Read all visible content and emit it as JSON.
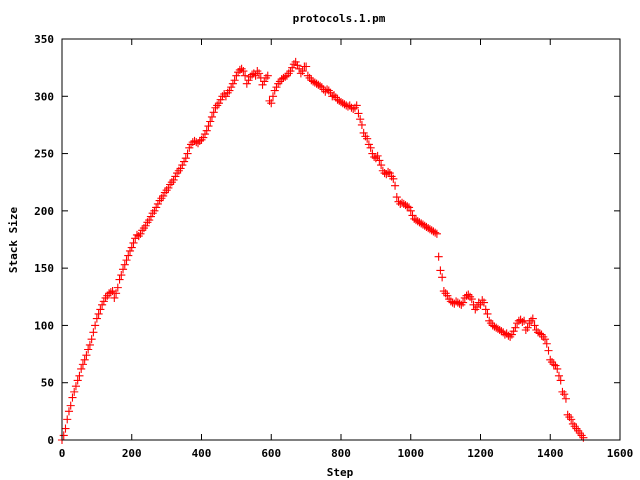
{
  "chart_data": {
    "type": "scatter",
    "title": "protocols.1.pm",
    "xlabel": "Step",
    "ylabel": "Stack Size",
    "xlim": [
      0,
      1600
    ],
    "ylim": [
      0,
      350
    ],
    "xticks": [
      0,
      200,
      400,
      600,
      800,
      1000,
      1200,
      1400,
      1600
    ],
    "yticks": [
      0,
      50,
      100,
      150,
      200,
      250,
      300,
      350
    ],
    "grid": false,
    "legend": "none",
    "marker": "plus",
    "color": "#ff0000",
    "series": [
      {
        "points": [
          [
            0,
            0
          ],
          [
            5,
            4
          ],
          [
            10,
            10
          ],
          [
            15,
            18
          ],
          [
            20,
            25
          ],
          [
            25,
            30
          ],
          [
            30,
            37
          ],
          [
            35,
            42
          ],
          [
            40,
            47
          ],
          [
            45,
            52
          ],
          [
            50,
            56
          ],
          [
            55,
            62
          ],
          [
            60,
            66
          ],
          [
            65,
            70
          ],
          [
            70,
            74
          ],
          [
            75,
            79
          ],
          [
            80,
            83
          ],
          [
            85,
            88
          ],
          [
            90,
            94
          ],
          [
            95,
            100
          ],
          [
            100,
            106
          ],
          [
            105,
            110
          ],
          [
            110,
            114
          ],
          [
            115,
            118
          ],
          [
            120,
            121
          ],
          [
            125,
            124
          ],
          [
            130,
            126
          ],
          [
            135,
            128
          ],
          [
            140,
            129
          ],
          [
            145,
            130
          ],
          [
            150,
            124
          ],
          [
            155,
            128
          ],
          [
            160,
            133
          ],
          [
            165,
            140
          ],
          [
            170,
            144
          ],
          [
            175,
            149
          ],
          [
            180,
            153
          ],
          [
            185,
            157
          ],
          [
            190,
            161
          ],
          [
            195,
            165
          ],
          [
            200,
            168
          ],
          [
            205,
            172
          ],
          [
            210,
            176
          ],
          [
            215,
            179
          ],
          [
            220,
            178
          ],
          [
            225,
            180
          ],
          [
            230,
            183
          ],
          [
            235,
            185
          ],
          [
            240,
            187
          ],
          [
            245,
            190
          ],
          [
            250,
            192
          ],
          [
            255,
            195
          ],
          [
            260,
            198
          ],
          [
            265,
            200
          ],
          [
            270,
            203
          ],
          [
            275,
            206
          ],
          [
            280,
            209
          ],
          [
            285,
            211
          ],
          [
            290,
            213
          ],
          [
            295,
            216
          ],
          [
            300,
            218
          ],
          [
            305,
            220
          ],
          [
            310,
            223
          ],
          [
            315,
            225
          ],
          [
            320,
            227
          ],
          [
            325,
            230
          ],
          [
            330,
            233
          ],
          [
            335,
            235
          ],
          [
            340,
            237
          ],
          [
            345,
            240
          ],
          [
            350,
            243
          ],
          [
            355,
            246
          ],
          [
            360,
            250
          ],
          [
            365,
            255
          ],
          [
            370,
            258
          ],
          [
            375,
            260
          ],
          [
            380,
            261
          ],
          [
            385,
            260
          ],
          [
            390,
            259
          ],
          [
            395,
            261
          ],
          [
            400,
            262
          ],
          [
            405,
            264
          ],
          [
            410,
            267
          ],
          [
            415,
            270
          ],
          [
            420,
            274
          ],
          [
            425,
            278
          ],
          [
            430,
            282
          ],
          [
            435,
            286
          ],
          [
            440,
            290
          ],
          [
            445,
            292
          ],
          [
            450,
            294
          ],
          [
            455,
            297
          ],
          [
            460,
            300
          ],
          [
            465,
            302
          ],
          [
            470,
            300
          ],
          [
            475,
            303
          ],
          [
            480,
            305
          ],
          [
            485,
            308
          ],
          [
            490,
            311
          ],
          [
            495,
            314
          ],
          [
            500,
            318
          ],
          [
            505,
            321
          ],
          [
            510,
            323
          ],
          [
            515,
            324
          ],
          [
            520,
            322
          ],
          [
            525,
            318
          ],
          [
            530,
            311
          ],
          [
            535,
            314
          ],
          [
            540,
            317
          ],
          [
            545,
            319
          ],
          [
            550,
            320
          ],
          [
            555,
            318
          ],
          [
            560,
            322
          ],
          [
            565,
            320
          ],
          [
            570,
            316
          ],
          [
            575,
            310
          ],
          [
            580,
            313
          ],
          [
            585,
            316
          ],
          [
            590,
            318
          ],
          [
            595,
            296
          ],
          [
            600,
            294
          ],
          [
            605,
            300
          ],
          [
            610,
            305
          ],
          [
            615,
            308
          ],
          [
            620,
            311
          ],
          [
            625,
            313
          ],
          [
            630,
            315
          ],
          [
            635,
            316
          ],
          [
            640,
            317
          ],
          [
            645,
            318
          ],
          [
            650,
            320
          ],
          [
            655,
            322
          ],
          [
            660,
            325
          ],
          [
            665,
            328
          ],
          [
            670,
            330
          ],
          [
            675,
            327
          ],
          [
            680,
            324
          ],
          [
            685,
            320
          ],
          [
            690,
            322
          ],
          [
            695,
            326
          ],
          [
            700,
            326
          ],
          [
            705,
            318
          ],
          [
            710,
            316
          ],
          [
            715,
            314
          ],
          [
            720,
            313
          ],
          [
            725,
            312
          ],
          [
            730,
            311
          ],
          [
            735,
            310
          ],
          [
            740,
            309
          ],
          [
            745,
            308
          ],
          [
            750,
            306
          ],
          [
            755,
            304
          ],
          [
            760,
            306
          ],
          [
            765,
            305
          ],
          [
            770,
            303
          ],
          [
            775,
            300
          ],
          [
            780,
            301
          ],
          [
            785,
            299
          ],
          [
            790,
            297
          ],
          [
            795,
            296
          ],
          [
            800,
            295
          ],
          [
            805,
            294
          ],
          [
            810,
            293
          ],
          [
            815,
            292
          ],
          [
            820,
            291
          ],
          [
            825,
            292
          ],
          [
            830,
            290
          ],
          [
            835,
            289
          ],
          [
            840,
            290
          ],
          [
            845,
            292
          ],
          [
            850,
            285
          ],
          [
            855,
            280
          ],
          [
            860,
            275
          ],
          [
            865,
            268
          ],
          [
            870,
            265
          ],
          [
            875,
            263
          ],
          [
            880,
            258
          ],
          [
            885,
            255
          ],
          [
            890,
            250
          ],
          [
            895,
            247
          ],
          [
            900,
            246
          ],
          [
            905,
            248
          ],
          [
            910,
            244
          ],
          [
            915,
            240
          ],
          [
            920,
            235
          ],
          [
            925,
            233
          ],
          [
            930,
            232
          ],
          [
            935,
            234
          ],
          [
            940,
            233
          ],
          [
            945,
            230
          ],
          [
            950,
            228
          ],
          [
            955,
            222
          ],
          [
            960,
            212
          ],
          [
            965,
            208
          ],
          [
            970,
            206
          ],
          [
            975,
            207
          ],
          [
            980,
            206
          ],
          [
            985,
            205
          ],
          [
            990,
            204
          ],
          [
            995,
            203
          ],
          [
            1000,
            200
          ],
          [
            1005,
            196
          ],
          [
            1010,
            193
          ],
          [
            1015,
            192
          ],
          [
            1020,
            191
          ],
          [
            1025,
            190
          ],
          [
            1030,
            189
          ],
          [
            1035,
            188
          ],
          [
            1040,
            187
          ],
          [
            1045,
            186
          ],
          [
            1050,
            185
          ],
          [
            1055,
            184
          ],
          [
            1060,
            183
          ],
          [
            1065,
            182
          ],
          [
            1070,
            181
          ],
          [
            1075,
            180
          ],
          [
            1080,
            160
          ],
          [
            1085,
            148
          ],
          [
            1090,
            142
          ],
          [
            1095,
            130
          ],
          [
            1100,
            128
          ],
          [
            1105,
            126
          ],
          [
            1110,
            123
          ],
          [
            1115,
            121
          ],
          [
            1120,
            120
          ],
          [
            1125,
            119
          ],
          [
            1130,
            121
          ],
          [
            1135,
            120
          ],
          [
            1140,
            119
          ],
          [
            1145,
            118
          ],
          [
            1150,
            120
          ],
          [
            1155,
            124
          ],
          [
            1160,
            126
          ],
          [
            1165,
            127
          ],
          [
            1170,
            125
          ],
          [
            1175,
            123
          ],
          [
            1180,
            118
          ],
          [
            1185,
            114
          ],
          [
            1190,
            116
          ],
          [
            1195,
            120
          ],
          [
            1200,
            118
          ],
          [
            1205,
            122
          ],
          [
            1210,
            120
          ],
          [
            1215,
            114
          ],
          [
            1220,
            110
          ],
          [
            1225,
            104
          ],
          [
            1230,
            102
          ],
          [
            1235,
            100
          ],
          [
            1240,
            99
          ],
          [
            1245,
            98
          ],
          [
            1250,
            97
          ],
          [
            1255,
            96
          ],
          [
            1260,
            95
          ],
          [
            1265,
            94
          ],
          [
            1270,
            92
          ],
          [
            1275,
            93
          ],
          [
            1280,
            91
          ],
          [
            1285,
            90
          ],
          [
            1290,
            92
          ],
          [
            1295,
            95
          ],
          [
            1300,
            98
          ],
          [
            1305,
            102
          ],
          [
            1310,
            104
          ],
          [
            1315,
            105
          ],
          [
            1320,
            103
          ],
          [
            1325,
            104
          ],
          [
            1330,
            96
          ],
          [
            1335,
            98
          ],
          [
            1340,
            102
          ],
          [
            1345,
            104
          ],
          [
            1350,
            106
          ],
          [
            1355,
            100
          ],
          [
            1360,
            96
          ],
          [
            1365,
            94
          ],
          [
            1370,
            93
          ],
          [
            1375,
            92
          ],
          [
            1380,
            90
          ],
          [
            1385,
            88
          ],
          [
            1390,
            84
          ],
          [
            1395,
            78
          ],
          [
            1400,
            70
          ],
          [
            1405,
            68
          ],
          [
            1410,
            66
          ],
          [
            1415,
            65
          ],
          [
            1420,
            62
          ],
          [
            1425,
            56
          ],
          [
            1430,
            52
          ],
          [
            1435,
            42
          ],
          [
            1440,
            40
          ],
          [
            1445,
            36
          ],
          [
            1450,
            22
          ],
          [
            1455,
            20
          ],
          [
            1460,
            18
          ],
          [
            1465,
            14
          ],
          [
            1470,
            12
          ],
          [
            1475,
            10
          ],
          [
            1480,
            8
          ],
          [
            1485,
            6
          ],
          [
            1490,
            4
          ],
          [
            1495,
            2
          ]
        ]
      }
    ]
  }
}
